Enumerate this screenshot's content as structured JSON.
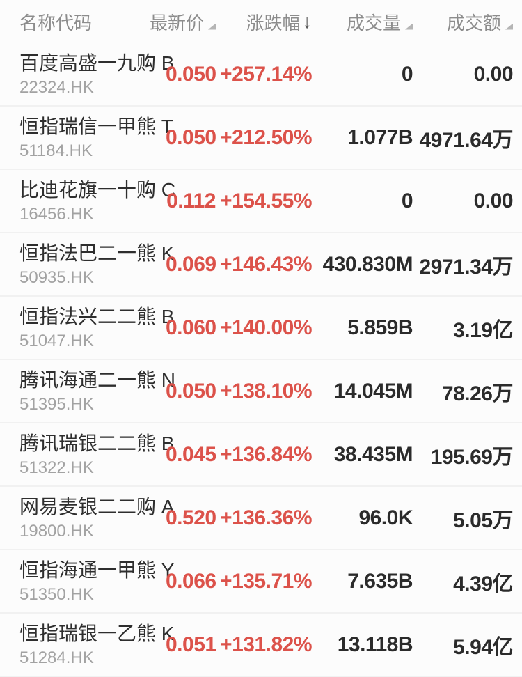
{
  "header": {
    "columns": {
      "name_code": {
        "label": "名称代码",
        "sort": "none"
      },
      "price": {
        "label": "最新价",
        "sort": "inactive"
      },
      "change": {
        "label": "涨跌幅",
        "sort": "desc"
      },
      "volume": {
        "label": "成交量",
        "sort": "inactive"
      },
      "amount": {
        "label": "成交额",
        "sort": "inactive"
      }
    },
    "sort_desc_arrow": "↓"
  },
  "colors": {
    "up_red": "#dc524a",
    "dark_text": "#2b2b2b",
    "muted_text": "#a2a2a2",
    "header_text": "#8c8c8c",
    "background": "#fcfcfc",
    "separator": "#f1f1f1"
  },
  "rows": [
    {
      "name": "百度高盛一九购 B",
      "code": "22324.HK",
      "price": "0.050",
      "change": "+257.14%",
      "volume": "0",
      "amount": "0.00"
    },
    {
      "name": "恒指瑞信一甲熊 T",
      "code": "51184.HK",
      "price": "0.050",
      "change": "+212.50%",
      "volume": "1.077B",
      "amount": "4971.64万"
    },
    {
      "name": "比迪花旗一十购 C",
      "code": "16456.HK",
      "price": "0.112",
      "change": "+154.55%",
      "volume": "0",
      "amount": "0.00"
    },
    {
      "name": "恒指法巴二一熊 K",
      "code": "50935.HK",
      "price": "0.069",
      "change": "+146.43%",
      "volume": "430.830M",
      "amount": "2971.34万"
    },
    {
      "name": "恒指法兴二二熊 B",
      "code": "51047.HK",
      "price": "0.060",
      "change": "+140.00%",
      "volume": "5.859B",
      "amount": "3.19亿"
    },
    {
      "name": "腾讯海通二一熊 N",
      "code": "51395.HK",
      "price": "0.050",
      "change": "+138.10%",
      "volume": "14.045M",
      "amount": "78.26万"
    },
    {
      "name": "腾讯瑞银二二熊 B",
      "code": "51322.HK",
      "price": "0.045",
      "change": "+136.84%",
      "volume": "38.435M",
      "amount": "195.69万"
    },
    {
      "name": "网易麦银二二购 A",
      "code": "19800.HK",
      "price": "0.520",
      "change": "+136.36%",
      "volume": "96.0K",
      "amount": "5.05万"
    },
    {
      "name": "恒指海通一甲熊 Y",
      "code": "51350.HK",
      "price": "0.066",
      "change": "+135.71%",
      "volume": "7.635B",
      "amount": "4.39亿"
    },
    {
      "name": "恒指瑞银一乙熊 K",
      "code": "51284.HK",
      "price": "0.051",
      "change": "+131.82%",
      "volume": "13.118B",
      "amount": "5.94亿"
    }
  ]
}
